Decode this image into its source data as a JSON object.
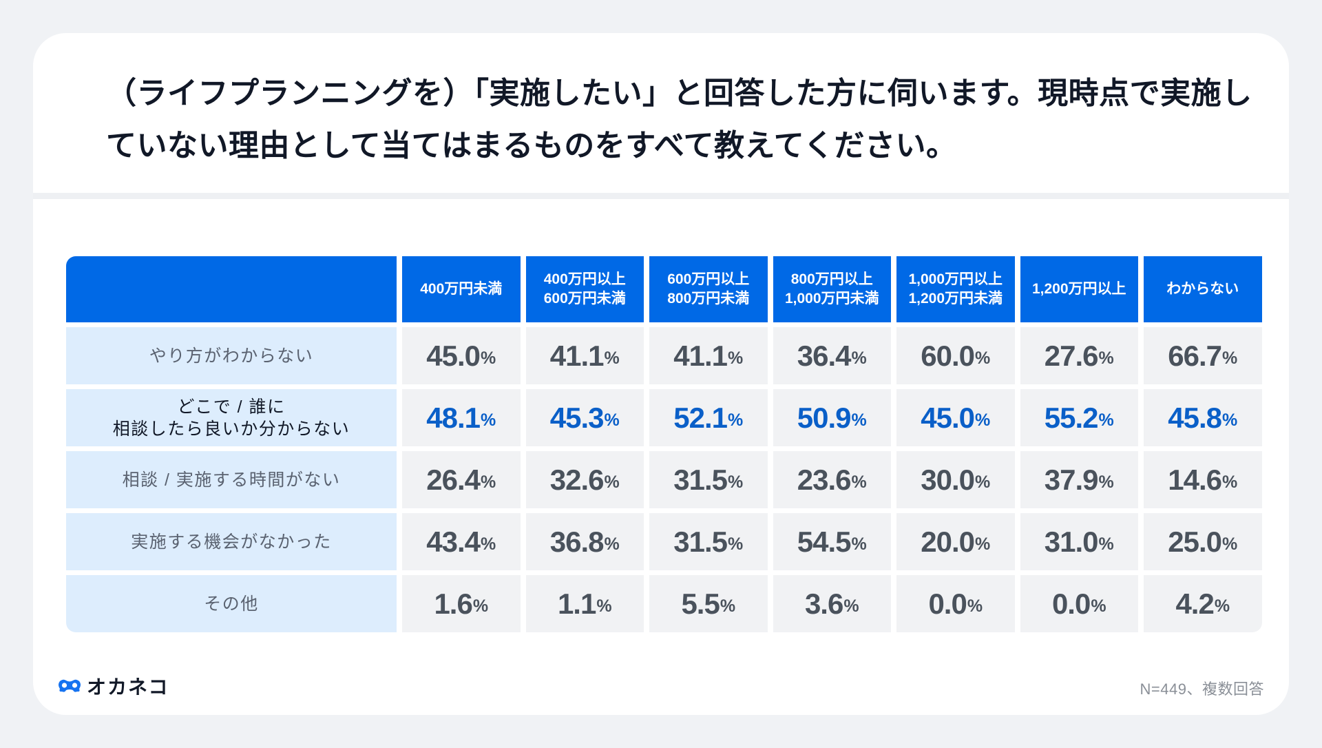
{
  "title": "（ライフプランニングを）「実施したい」と回答した方に伺います。現時点で実施していない理由として当てはまるものをすべて教えてください。",
  "table": {
    "columns": [
      "400万円未満",
      "400万円以上\n600万円未満",
      "600万円以上\n800万円未満",
      "800万円以上\n1,000万円未満",
      "1,000万円以上\n1,200万円未満",
      "1,200万円以上",
      "わからない"
    ],
    "rows": [
      {
        "label": "やり方がわからない",
        "emphasis": false,
        "values": [
          "45.0",
          "41.1",
          "41.1",
          "36.4",
          "60.0",
          "27.6",
          "66.7"
        ]
      },
      {
        "label": "どこで / 誰に\n相談したら良いか分からない",
        "emphasis": true,
        "values": [
          "48.1",
          "45.3",
          "52.1",
          "50.9",
          "45.0",
          "55.2",
          "45.8"
        ]
      },
      {
        "label": "相談 / 実施する時間がない",
        "emphasis": false,
        "values": [
          "26.4",
          "32.6",
          "31.5",
          "23.6",
          "30.0",
          "37.9",
          "14.6"
        ]
      },
      {
        "label": "実施する機会がなかった",
        "emphasis": false,
        "values": [
          "43.4",
          "36.8",
          "31.5",
          "54.5",
          "20.0",
          "31.0",
          "25.0"
        ]
      },
      {
        "label": "その他",
        "emphasis": false,
        "values": [
          "1.6",
          "1.1",
          "5.5",
          "3.6",
          "0.0",
          "0.0",
          "4.2"
        ]
      }
    ],
    "unit": "%"
  },
  "footer": {
    "logo_text": "オカネコ",
    "logo_icon": "okaneko-cat-eyes-icon",
    "note": "N=449、複数回答"
  },
  "colors": {
    "header_bg": "#0069E6",
    "row_label_bg": "#DDEDFD",
    "value_bg": "#F1F2F4",
    "value_text": "#4A525C",
    "highlight_text": "#0A5FC8",
    "page_bg": "#F0F2F5"
  },
  "chart_data": {
    "type": "table",
    "title": "（ライフプランニングを）「実施したい」と回答した方に伺います。現時点で実施していない理由として当てはまるものをすべて教えてください。",
    "categories": [
      "400万円未満",
      "400万円以上600万円未満",
      "600万円以上800万円未満",
      "800万円以上1,000万円未満",
      "1,000万円以上1,200万円未満",
      "1,200万円以上",
      "わからない"
    ],
    "series": [
      {
        "name": "やり方がわからない",
        "values": [
          45.0,
          41.1,
          41.1,
          36.4,
          60.0,
          27.6,
          66.7
        ]
      },
      {
        "name": "どこで / 誰に相談したら良いか分からない",
        "values": [
          48.1,
          45.3,
          52.1,
          50.9,
          45.0,
          55.2,
          45.8
        ]
      },
      {
        "name": "相談 / 実施する時間がない",
        "values": [
          26.4,
          32.6,
          31.5,
          23.6,
          30.0,
          37.9,
          14.6
        ]
      },
      {
        "name": "実施する機会がなかった",
        "values": [
          43.4,
          36.8,
          31.5,
          54.5,
          20.0,
          31.0,
          25.0
        ]
      },
      {
        "name": "その他",
        "values": [
          1.6,
          1.1,
          5.5,
          3.6,
          0.0,
          0.0,
          4.2
        ]
      }
    ],
    "unit": "%",
    "highlighted_series": "どこで / 誰に相談したら良いか分からない",
    "annotations": [
      "N=449、複数回答"
    ]
  }
}
